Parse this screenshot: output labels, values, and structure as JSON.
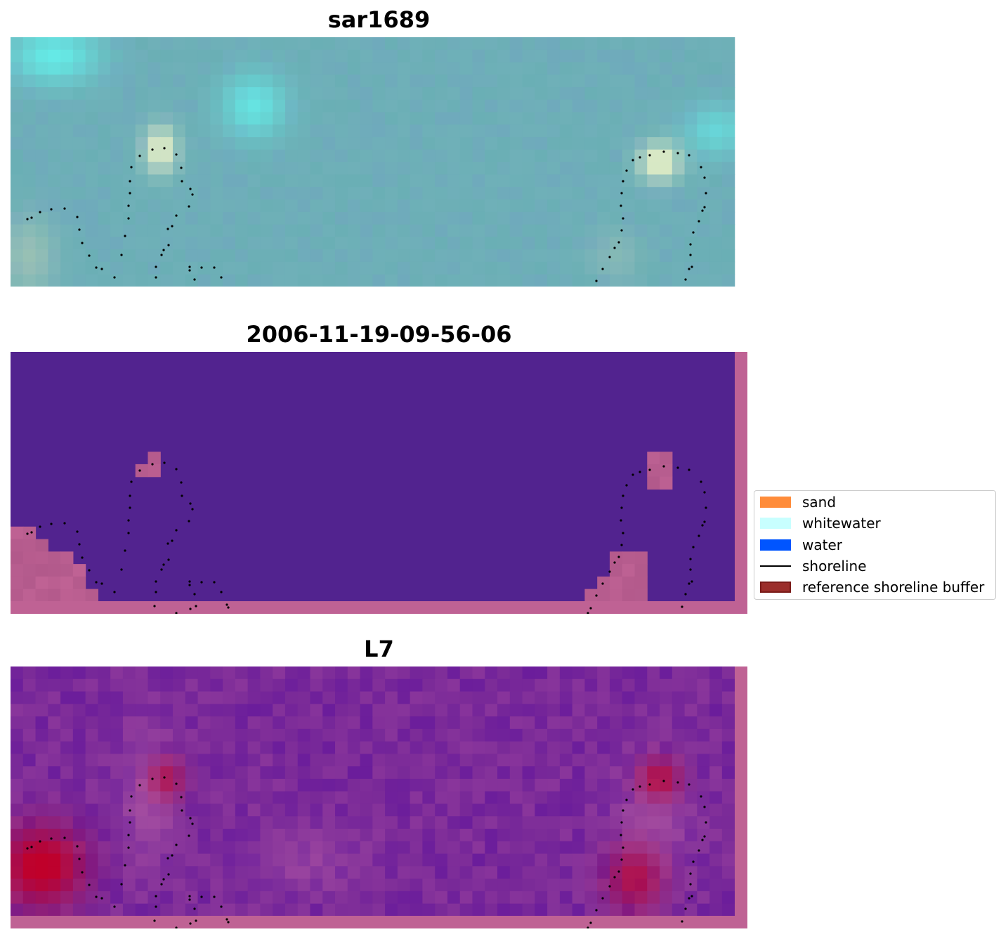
{
  "chart_data": [
    {
      "type": "image",
      "title": "sar1689",
      "grid_shape": [
        20,
        58
      ],
      "base_color": "#6fb0b8",
      "shoreline_color": "#000000"
    },
    {
      "type": "image",
      "title": "2006-11-19-09-56-06",
      "grid_shape": [
        20,
        58
      ],
      "background_color": "#52238f",
      "buffer_overlay_color": "#bf6294",
      "shoreline_color": "#000000"
    },
    {
      "type": "image",
      "title": "L7",
      "grid_shape": [
        20,
        58
      ],
      "base_color": "#7a2a98",
      "high_color": "#c0002a",
      "buffer_overlay_color": "#bf6294",
      "shoreline_color": "#000000"
    }
  ],
  "legend": {
    "placement": "right",
    "items": [
      {
        "label": "sand",
        "color": "#ff8c3a",
        "kind": "patch"
      },
      {
        "label": "whitewater",
        "color": "#c8ffff",
        "kind": "patch"
      },
      {
        "label": "water",
        "color": "#0055ff",
        "kind": "patch"
      },
      {
        "label": "shoreline",
        "color": "#000000",
        "kind": "line"
      },
      {
        "label": "reference shoreline buffer",
        "color": "#9b2d2a",
        "kind": "patch",
        "edge": "#7a1a18"
      }
    ]
  }
}
